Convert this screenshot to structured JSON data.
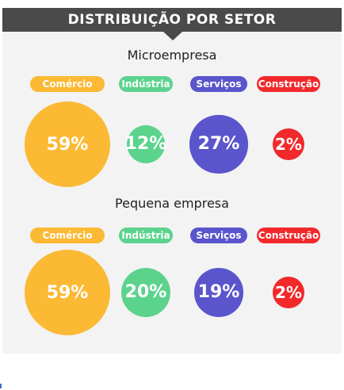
{
  "chart_data": [
    {
      "type": "bubble",
      "title": "DISTRIBUIÇÃO POR SETOR",
      "subtitle": "Microempresa",
      "categories": [
        "Comércio",
        "Indústria",
        "Serviços",
        "Construção"
      ],
      "values": [
        59,
        12,
        27,
        2
      ],
      "labels": [
        "59%",
        "12%",
        "27%",
        "2%"
      ],
      "colors": [
        "#fbb934",
        "#5cd38d",
        "#5a55cc",
        "#f2292b"
      ]
    },
    {
      "type": "bubble",
      "subtitle": "Pequena empresa",
      "categories": [
        "Comércio",
        "Indústria",
        "Serviços",
        "Construção"
      ],
      "values": [
        59,
        20,
        19,
        2
      ],
      "labels": [
        "59%",
        "20%",
        "19%",
        "2%"
      ],
      "colors": [
        "#fbb934",
        "#5cd38d",
        "#5a55cc",
        "#f2292b"
      ]
    }
  ]
}
